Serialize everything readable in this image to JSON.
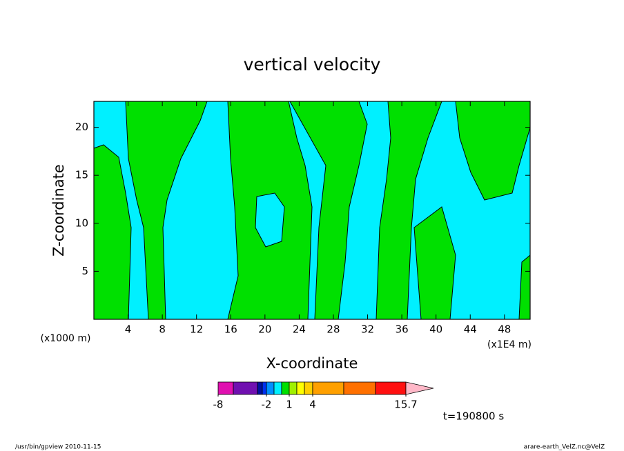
{
  "chart_data": {
    "type": "contour",
    "title": "vertical velocity",
    "x_label": "X-coordinate",
    "y_label": "Z-coordinate",
    "x_unit": "(x1E4 m)",
    "y_unit": "(x1000 m)",
    "xlim": [
      0,
      51
    ],
    "ylim": [
      0,
      22.7
    ],
    "xticks": [
      4,
      8,
      12,
      16,
      20,
      24,
      28,
      32,
      36,
      40,
      44,
      48
    ],
    "yticks": [
      5,
      10,
      15,
      20
    ],
    "colorbar": {
      "colors": [
        "#e010b0",
        "#7010b0",
        "#0010a0",
        "#0030f0",
        "#0090ff",
        "#00f0ff",
        "#00e000",
        "#a0f000",
        "#ffff00",
        "#ffd000",
        "#ffa000",
        "#ff7000",
        "#ff1010",
        "#ff8080",
        "#ffb8c8"
      ],
      "ticks": [
        -8,
        -2,
        1,
        4,
        15.7
      ]
    },
    "time_label": "t=190800 s",
    "footer_left": "/usr/bin/gpview   2010-11-15",
    "footer_right": "arare-earth_VelZ.nc@VelZ"
  }
}
